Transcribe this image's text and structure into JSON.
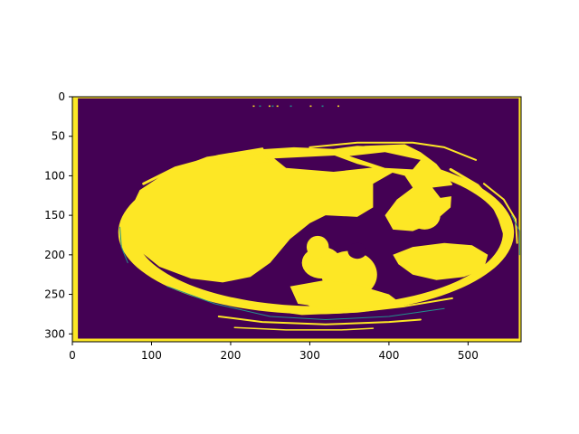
{
  "chart_data": {
    "type": "heatmap",
    "title": "",
    "xlabel": "",
    "ylabel": "",
    "image_shape": [
      310,
      567
    ],
    "xlim": [
      0,
      567
    ],
    "ylim": [
      310,
      0
    ],
    "x_ticks": [
      0,
      100,
      200,
      300,
      400,
      500
    ],
    "y_ticks": [
      0,
      50,
      100,
      150,
      200,
      250,
      300
    ],
    "x_tick_labels": [
      "0",
      "100",
      "200",
      "300",
      "400",
      "500"
    ],
    "y_tick_labels": [
      "0",
      "50",
      "100",
      "150",
      "200",
      "250",
      "300"
    ],
    "colormap": "viridis",
    "value_colors": {
      "low": "#440154",
      "high": "#fde725",
      "edge": "#21918c"
    },
    "grid": false,
    "content": "binary mask of an axial abdominal CT slice; value 1 (yellow) for body tissue/organs and a 1-px frame border, value 0 (purple) background"
  }
}
